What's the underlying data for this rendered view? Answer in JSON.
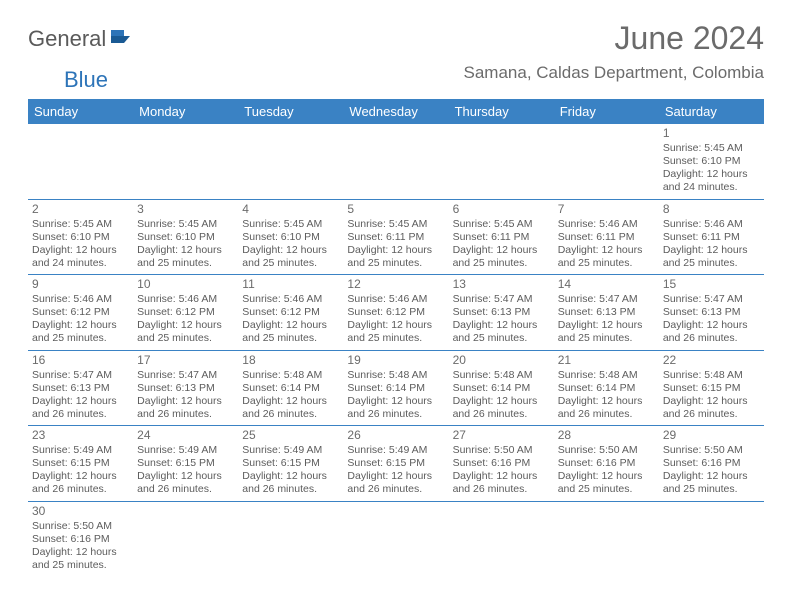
{
  "logo": {
    "part1": "General",
    "part2": "Blue"
  },
  "title": "June 2024",
  "location": "Samana, Caldas Department, Colombia",
  "colors": {
    "header_bg": "#3a82c4",
    "header_text": "#ffffff",
    "cell_border": "#3a82c4",
    "text": "#5c5c5c",
    "title_text": "#6b6b6b",
    "logo_dark": "#5a5a5a",
    "logo_blue": "#2d74b8"
  },
  "weekdays": [
    "Sunday",
    "Monday",
    "Tuesday",
    "Wednesday",
    "Thursday",
    "Friday",
    "Saturday"
  ],
  "weeks": [
    [
      null,
      null,
      null,
      null,
      null,
      null,
      {
        "n": "1",
        "sr": "5:45 AM",
        "ss": "6:10 PM",
        "dl": "12 hours and 24 minutes."
      }
    ],
    [
      {
        "n": "2",
        "sr": "5:45 AM",
        "ss": "6:10 PM",
        "dl": "12 hours and 24 minutes."
      },
      {
        "n": "3",
        "sr": "5:45 AM",
        "ss": "6:10 PM",
        "dl": "12 hours and 25 minutes."
      },
      {
        "n": "4",
        "sr": "5:45 AM",
        "ss": "6:10 PM",
        "dl": "12 hours and 25 minutes."
      },
      {
        "n": "5",
        "sr": "5:45 AM",
        "ss": "6:11 PM",
        "dl": "12 hours and 25 minutes."
      },
      {
        "n": "6",
        "sr": "5:45 AM",
        "ss": "6:11 PM",
        "dl": "12 hours and 25 minutes."
      },
      {
        "n": "7",
        "sr": "5:46 AM",
        "ss": "6:11 PM",
        "dl": "12 hours and 25 minutes."
      },
      {
        "n": "8",
        "sr": "5:46 AM",
        "ss": "6:11 PM",
        "dl": "12 hours and 25 minutes."
      }
    ],
    [
      {
        "n": "9",
        "sr": "5:46 AM",
        "ss": "6:12 PM",
        "dl": "12 hours and 25 minutes."
      },
      {
        "n": "10",
        "sr": "5:46 AM",
        "ss": "6:12 PM",
        "dl": "12 hours and 25 minutes."
      },
      {
        "n": "11",
        "sr": "5:46 AM",
        "ss": "6:12 PM",
        "dl": "12 hours and 25 minutes."
      },
      {
        "n": "12",
        "sr": "5:46 AM",
        "ss": "6:12 PM",
        "dl": "12 hours and 25 minutes."
      },
      {
        "n": "13",
        "sr": "5:47 AM",
        "ss": "6:13 PM",
        "dl": "12 hours and 25 minutes."
      },
      {
        "n": "14",
        "sr": "5:47 AM",
        "ss": "6:13 PM",
        "dl": "12 hours and 25 minutes."
      },
      {
        "n": "15",
        "sr": "5:47 AM",
        "ss": "6:13 PM",
        "dl": "12 hours and 26 minutes."
      }
    ],
    [
      {
        "n": "16",
        "sr": "5:47 AM",
        "ss": "6:13 PM",
        "dl": "12 hours and 26 minutes."
      },
      {
        "n": "17",
        "sr": "5:47 AM",
        "ss": "6:13 PM",
        "dl": "12 hours and 26 minutes."
      },
      {
        "n": "18",
        "sr": "5:48 AM",
        "ss": "6:14 PM",
        "dl": "12 hours and 26 minutes."
      },
      {
        "n": "19",
        "sr": "5:48 AM",
        "ss": "6:14 PM",
        "dl": "12 hours and 26 minutes."
      },
      {
        "n": "20",
        "sr": "5:48 AM",
        "ss": "6:14 PM",
        "dl": "12 hours and 26 minutes."
      },
      {
        "n": "21",
        "sr": "5:48 AM",
        "ss": "6:14 PM",
        "dl": "12 hours and 26 minutes."
      },
      {
        "n": "22",
        "sr": "5:48 AM",
        "ss": "6:15 PM",
        "dl": "12 hours and 26 minutes."
      }
    ],
    [
      {
        "n": "23",
        "sr": "5:49 AM",
        "ss": "6:15 PM",
        "dl": "12 hours and 26 minutes."
      },
      {
        "n": "24",
        "sr": "5:49 AM",
        "ss": "6:15 PM",
        "dl": "12 hours and 26 minutes."
      },
      {
        "n": "25",
        "sr": "5:49 AM",
        "ss": "6:15 PM",
        "dl": "12 hours and 26 minutes."
      },
      {
        "n": "26",
        "sr": "5:49 AM",
        "ss": "6:15 PM",
        "dl": "12 hours and 26 minutes."
      },
      {
        "n": "27",
        "sr": "5:50 AM",
        "ss": "6:16 PM",
        "dl": "12 hours and 26 minutes."
      },
      {
        "n": "28",
        "sr": "5:50 AM",
        "ss": "6:16 PM",
        "dl": "12 hours and 25 minutes."
      },
      {
        "n": "29",
        "sr": "5:50 AM",
        "ss": "6:16 PM",
        "dl": "12 hours and 25 minutes."
      }
    ],
    [
      {
        "n": "30",
        "sr": "5:50 AM",
        "ss": "6:16 PM",
        "dl": "12 hours and 25 minutes."
      },
      null,
      null,
      null,
      null,
      null,
      null
    ]
  ],
  "labels": {
    "sunrise": "Sunrise:",
    "sunset": "Sunset:",
    "daylight": "Daylight:"
  }
}
